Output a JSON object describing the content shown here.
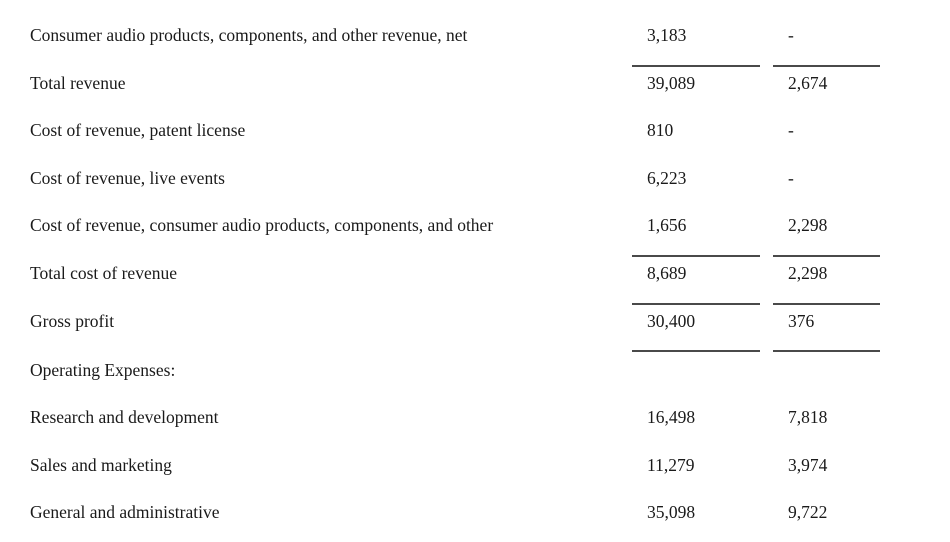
{
  "document": {
    "kind": "income-statement-excerpt",
    "colors": {
      "text": "#1a1a1a",
      "rule": "#4a4a4a",
      "background": "#ffffff"
    },
    "table": {
      "columns": [
        "label",
        "amount_col_1",
        "amount_col_2"
      ],
      "rows": [
        {
          "label": "Consumer audio products, components, and other revenue, net",
          "col1": "3,183",
          "col2": "-",
          "top_border": false,
          "bottom_border": false
        },
        {
          "label": "Total revenue",
          "col1": "39,089",
          "col2": "2,674",
          "top_border": true,
          "bottom_border": false
        },
        {
          "label": "Cost of revenue, patent license",
          "col1": "810",
          "col2": "-",
          "top_border": false,
          "bottom_border": false
        },
        {
          "label": "Cost of revenue, live events",
          "col1": "6,223",
          "col2": "-",
          "top_border": false,
          "bottom_border": false
        },
        {
          "label": "Cost of revenue, consumer audio products, components, and other",
          "col1": "1,656",
          "col2": "2,298",
          "top_border": false,
          "bottom_border": false
        },
        {
          "label": "Total cost of revenue",
          "col1": "8,689",
          "col2": "2,298",
          "top_border": true,
          "bottom_border": false
        },
        {
          "label": "Gross profit",
          "col1": "30,400",
          "col2": "376",
          "top_border": true,
          "bottom_border": true
        },
        {
          "label": "Operating Expenses:",
          "col1": "",
          "col2": "",
          "top_border": false,
          "bottom_border": false
        },
        {
          "label": "Research and development",
          "col1": "16,498",
          "col2": "7,818",
          "top_border": false,
          "bottom_border": false
        },
        {
          "label": "Sales and marketing",
          "col1": "11,279",
          "col2": "3,974",
          "top_border": false,
          "bottom_border": false
        },
        {
          "label": "General and administrative",
          "col1": "35,098",
          "col2": "9,722",
          "top_border": false,
          "bottom_border": false
        }
      ]
    }
  }
}
